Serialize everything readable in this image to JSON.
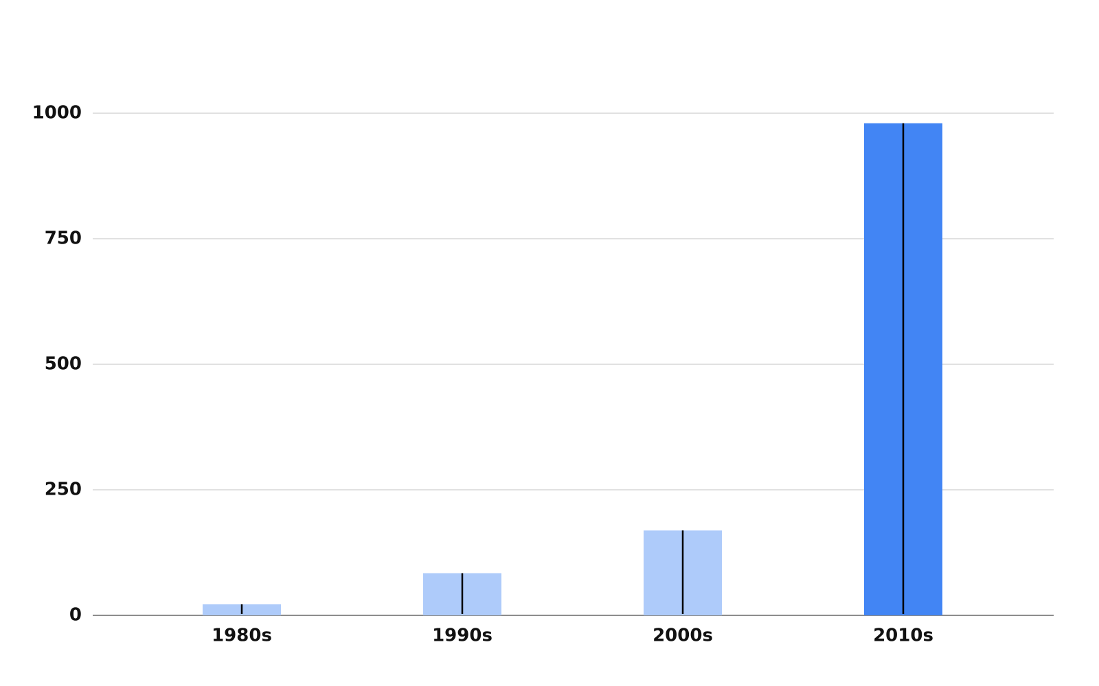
{
  "chart_data": {
    "type": "bar",
    "categories": [
      "1980s",
      "1990s",
      "2000s",
      "2010s"
    ],
    "values": [
      22,
      84,
      169,
      980
    ],
    "colors": [
      "#aecbfa",
      "#aecbfa",
      "#aecbfa",
      "#4285f4"
    ],
    "ylim": [
      0,
      1000
    ],
    "yticks": [
      0,
      250,
      500,
      750,
      1000
    ],
    "grid": true
  }
}
